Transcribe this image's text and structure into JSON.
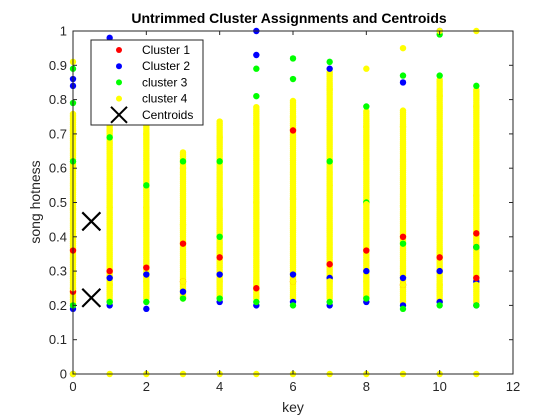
{
  "chart_data": {
    "type": "scatter",
    "title": "Untrimmed Cluster Assignments and Centroids",
    "xlabel": "key",
    "ylabel": "song hotness",
    "xlim": [
      0,
      12
    ],
    "ylim": [
      0,
      1
    ],
    "xticks": [
      "0",
      "2",
      "4",
      "6",
      "8",
      "10",
      "12"
    ],
    "yticks": [
      "0",
      "0.1",
      "0.2",
      "0.3",
      "0.4",
      "0.5",
      "0.6",
      "0.7",
      "0.8",
      "0.9",
      "1"
    ],
    "grid": false,
    "legend_position": "top-left",
    "series": [
      {
        "name": "Cluster 1",
        "color": "#ff0000",
        "marker": "dot",
        "points": [
          [
            0,
            0.24
          ],
          [
            0,
            0.36
          ],
          [
            1,
            0.3
          ],
          [
            2,
            0.31
          ],
          [
            3,
            0.27
          ],
          [
            3,
            0.38
          ],
          [
            4,
            0.34
          ],
          [
            5,
            0.25
          ],
          [
            6,
            0.27
          ],
          [
            6,
            0.71
          ],
          [
            7,
            0.32
          ],
          [
            8,
            0.36
          ],
          [
            9,
            0.26
          ],
          [
            9,
            0.4
          ],
          [
            10,
            0.34
          ],
          [
            11,
            0.28
          ],
          [
            11,
            0.41
          ]
        ]
      },
      {
        "name": "Cluster 2",
        "color": "#0000ff",
        "marker": "dot",
        "points": [
          [
            0,
            0.19
          ],
          [
            0,
            0.84
          ],
          [
            0,
            0.86
          ],
          [
            0,
            0.0
          ],
          [
            1,
            0.2
          ],
          [
            1,
            0.28
          ],
          [
            1,
            0.98
          ],
          [
            2,
            0.19
          ],
          [
            2,
            0.29
          ],
          [
            3,
            0.24
          ],
          [
            4,
            0.21
          ],
          [
            4,
            0.29
          ],
          [
            5,
            0.2
          ],
          [
            5,
            0.93
          ],
          [
            5,
            1.0
          ],
          [
            6,
            0.21
          ],
          [
            6,
            0.29
          ],
          [
            7,
            0.2
          ],
          [
            7,
            0.28
          ],
          [
            7,
            0.89
          ],
          [
            8,
            0.21
          ],
          [
            8,
            0.3
          ],
          [
            9,
            0.2
          ],
          [
            9,
            0.28
          ],
          [
            9,
            0.85
          ],
          [
            10,
            0.21
          ],
          [
            10,
            0.3
          ],
          [
            10,
            1.0
          ],
          [
            11,
            0.2
          ],
          [
            11,
            0.27
          ],
          [
            11,
            0.37
          ]
        ]
      },
      {
        "name": "cluster 3",
        "color": "#00ff00",
        "marker": "dot",
        "points": [
          [
            0,
            0.2
          ],
          [
            0,
            0.79
          ],
          [
            0,
            0.89
          ],
          [
            0,
            0.62
          ],
          [
            1,
            0.21
          ],
          [
            1,
            0.96
          ],
          [
            1,
            0.69
          ],
          [
            2,
            0.21
          ],
          [
            2,
            0.55
          ],
          [
            3,
            0.22
          ],
          [
            3,
            0.62
          ],
          [
            4,
            0.22
          ],
          [
            4,
            0.62
          ],
          [
            4,
            0.4
          ],
          [
            5,
            0.21
          ],
          [
            5,
            0.81
          ],
          [
            5,
            0.89
          ],
          [
            6,
            0.2
          ],
          [
            6,
            0.92
          ],
          [
            6,
            0.86
          ],
          [
            7,
            0.21
          ],
          [
            7,
            0.91
          ],
          [
            7,
            0.62
          ],
          [
            8,
            0.22
          ],
          [
            8,
            0.78
          ],
          [
            8,
            0.5
          ],
          [
            9,
            0.19
          ],
          [
            9,
            0.87
          ],
          [
            9,
            0.38
          ],
          [
            10,
            0.2
          ],
          [
            10,
            0.87
          ],
          [
            10,
            0.99
          ],
          [
            11,
            0.2
          ],
          [
            11,
            0.37
          ],
          [
            11,
            0.84
          ]
        ]
      },
      {
        "name": "cluster 4",
        "color": "#ffff00",
        "marker": "dot",
        "bands": [
          [
            0,
            0.2,
            0.76
          ],
          [
            1,
            0.21,
            0.76
          ],
          [
            2,
            0.22,
            0.75
          ],
          [
            3,
            0.22,
            0.65
          ],
          [
            4,
            0.22,
            0.74
          ],
          [
            5,
            0.22,
            0.78
          ],
          [
            6,
            0.22,
            0.8
          ],
          [
            7,
            0.22,
            0.88
          ],
          [
            8,
            0.22,
            0.77
          ],
          [
            9,
            0.21,
            0.77
          ],
          [
            10,
            0.21,
            0.86
          ],
          [
            11,
            0.21,
            0.83
          ]
        ],
        "points": [
          [
            0,
            0.91
          ],
          [
            0,
            0.0
          ],
          [
            1,
            0.86
          ],
          [
            1,
            0.0
          ],
          [
            2,
            0.0
          ],
          [
            3,
            0.0
          ],
          [
            4,
            0.0
          ],
          [
            5,
            0.0
          ],
          [
            6,
            0.0
          ],
          [
            7,
            0.0
          ],
          [
            8,
            0.89
          ],
          [
            8,
            0.0
          ],
          [
            9,
            0.95
          ],
          [
            9,
            0.0
          ],
          [
            10,
            0.0
          ],
          [
            10,
            1.0
          ],
          [
            11,
            0.0
          ],
          [
            11,
            1.0
          ]
        ]
      }
    ],
    "centroids": {
      "name": "Centroids",
      "color": "#000000",
      "marker": "x",
      "points": [
        [
          0.5,
          0.445
        ],
        [
          0.5,
          0.445
        ],
        [
          0.5,
          0.222
        ],
        [
          0.5,
          0.222
        ]
      ]
    }
  }
}
